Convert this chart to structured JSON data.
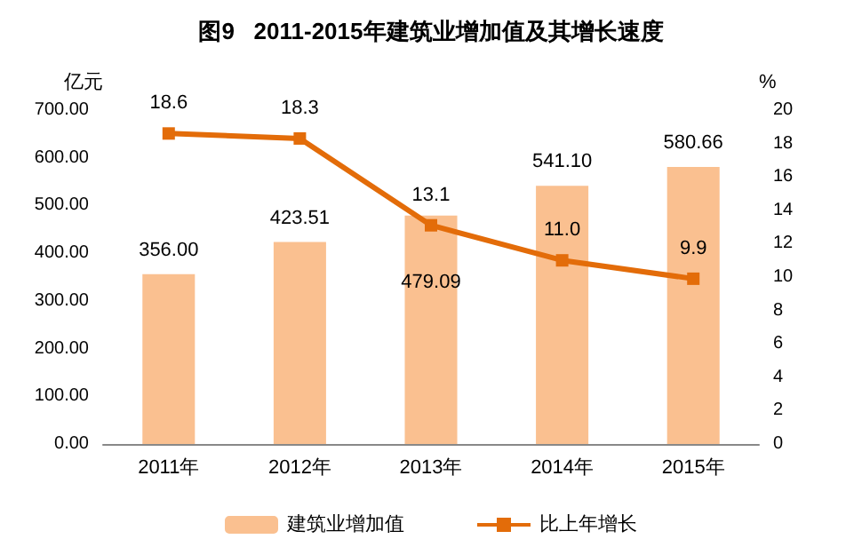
{
  "chart_data": {
    "type": "bar",
    "title": "图9   2011-2015年建筑业增加值及其增长速度",
    "ylabel": "亿元",
    "y2label": "%",
    "categories": [
      "2011年",
      "2012年",
      "2013年",
      "2014年",
      "2015年"
    ],
    "series": [
      {
        "name": "建筑业增加值",
        "color": "#fac090",
        "values": [
          356.0,
          423.51,
          479.09,
          541.1,
          580.66
        ],
        "value_labels": [
          "356.00",
          "423.51",
          "479.09",
          "541.10",
          "580.66"
        ]
      },
      {
        "name": "比上年增长",
        "type": "line",
        "axis": "y2",
        "color": "#e36c09",
        "marker": "square",
        "values": [
          18.6,
          18.3,
          13.1,
          11.0,
          9.9
        ],
        "value_labels": [
          "18.6",
          "18.3",
          "13.1",
          "11.0",
          "9.9"
        ]
      }
    ],
    "ylim": [
      0,
      700
    ],
    "yticks": [
      {
        "value": 0,
        "label": "0.00"
      },
      {
        "value": 100,
        "label": "100.00"
      },
      {
        "value": 200,
        "label": "200.00"
      },
      {
        "value": 300,
        "label": "300.00"
      },
      {
        "value": 400,
        "label": "400.00"
      },
      {
        "value": 500,
        "label": "500.00"
      },
      {
        "value": 600,
        "label": "600.00"
      },
      {
        "value": 700,
        "label": "700.00"
      }
    ],
    "y2lim": [
      0,
      20
    ],
    "y2ticks": [
      0,
      2,
      4,
      6,
      8,
      10,
      12,
      14,
      16,
      18,
      20
    ],
    "grid": false,
    "legend": "bottom"
  }
}
